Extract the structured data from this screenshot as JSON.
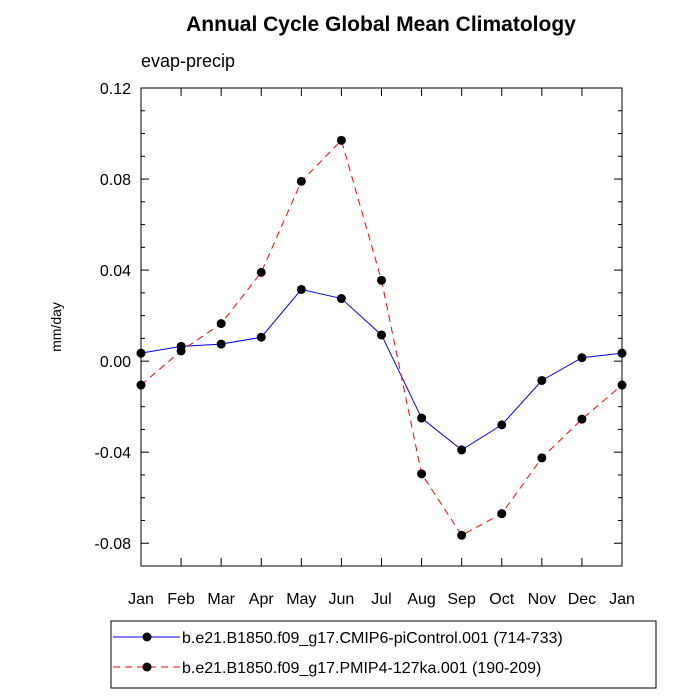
{
  "chart_data": {
    "type": "line",
    "title": "Annual Cycle Global Mean Climatology",
    "subtitle": "evap-precip",
    "xlabel": "",
    "ylabel": "mm/day",
    "categories": [
      "Jan",
      "Feb",
      "Mar",
      "Apr",
      "May",
      "Jun",
      "Jul",
      "Aug",
      "Sep",
      "Oct",
      "Nov",
      "Dec",
      "Jan"
    ],
    "ylim": [
      -0.09,
      0.12
    ],
    "yticks": [
      -0.08,
      -0.04,
      0.0,
      0.04,
      0.08,
      0.12
    ],
    "ytick_labels": [
      "-0.08",
      "-0.04",
      "0.00",
      "0.04",
      "0.08",
      "0.12"
    ],
    "grid": false,
    "legend_position": "bottom",
    "series": [
      {
        "name": "b.e21.B1850.f09_g17.CMIP6-piControl.001 (714-733)",
        "color": "#0000ff",
        "dash": "solid",
        "values": [
          0.0035,
          0.0065,
          0.0075,
          0.0105,
          0.0315,
          0.0275,
          0.0115,
          -0.025,
          -0.039,
          -0.028,
          -0.0085,
          0.0015,
          0.0035
        ]
      },
      {
        "name": "b.e21.B1850.f09_g17.PMIP4-127ka.001 (190-209)",
        "color": "#ff0000",
        "dash": "dashed",
        "values": [
          -0.0105,
          0.0045,
          0.0165,
          0.039,
          0.079,
          0.097,
          0.0355,
          -0.0495,
          -0.0765,
          -0.067,
          -0.0425,
          -0.0255,
          -0.0105
        ]
      }
    ]
  }
}
